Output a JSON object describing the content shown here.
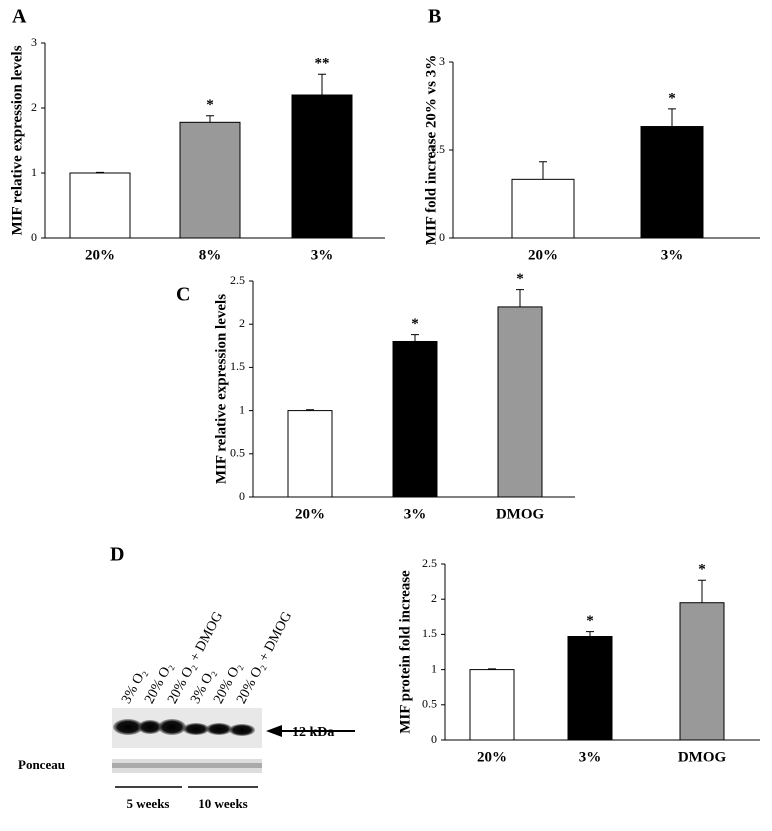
{
  "chart_data": [
    {
      "type": "bar",
      "panel": "A",
      "ylabel": "MIF relative expression levels",
      "categories": [
        "20%",
        "8%",
        "3%"
      ],
      "values": [
        1.0,
        1.78,
        2.2
      ],
      "errors": [
        0.01,
        0.1,
        0.32
      ],
      "colors": [
        "#ffffff",
        "#999999",
        "#000000"
      ],
      "markers": [
        null,
        "*",
        "**"
      ],
      "ylim": [
        0,
        3
      ],
      "yticks": [
        0,
        1,
        2,
        3
      ]
    },
    {
      "type": "bar",
      "panel": "B",
      "ylabel": "MIF fold increase 20% vs 3%",
      "categories": [
        "20%",
        "3%"
      ],
      "values": [
        1.0,
        1.9
      ],
      "errors": [
        0.3,
        0.3
      ],
      "colors": [
        "#ffffff",
        "#000000"
      ],
      "markers": [
        null,
        "*"
      ],
      "ylim": [
        0,
        3
      ],
      "yticks": [
        0,
        1.5,
        3
      ]
    },
    {
      "type": "bar",
      "panel": "C",
      "ylabel": "MIF relative expression levels",
      "categories": [
        "20%",
        "3%",
        "DMOG"
      ],
      "values": [
        1.0,
        1.8,
        2.2
      ],
      "errors": [
        0.01,
        0.08,
        0.2
      ],
      "colors": [
        "#ffffff",
        "#000000",
        "#999999"
      ],
      "markers": [
        null,
        "*",
        "*"
      ],
      "ylim": [
        0,
        2.5
      ],
      "yticks": [
        0,
        0.5,
        1,
        1.5,
        2,
        2.5
      ]
    },
    {
      "type": "bar",
      "panel": "D",
      "ylabel": "MIF  protein fold increase",
      "categories": [
        "20%",
        "3%",
        "DMOG"
      ],
      "values": [
        1.0,
        1.47,
        1.95
      ],
      "errors": [
        0.01,
        0.07,
        0.32
      ],
      "colors": [
        "#ffffff",
        "#000000",
        "#999999"
      ],
      "markers": [
        null,
        "*",
        "*"
      ],
      "ylim": [
        0,
        2.5
      ],
      "yticks": [
        0,
        0.5,
        1,
        1.5,
        2,
        2.5
      ]
    }
  ],
  "blot": {
    "lanes": [
      "3% O₂",
      "20% O₂",
      "20% O₂ + DMOG",
      "3% O₂",
      "20% O₂",
      "20% O₂ + DMOG"
    ],
    "marker": "12 kDa",
    "loading": "Ponceau",
    "groups": [
      "5 weeks",
      "10 weeks"
    ]
  }
}
